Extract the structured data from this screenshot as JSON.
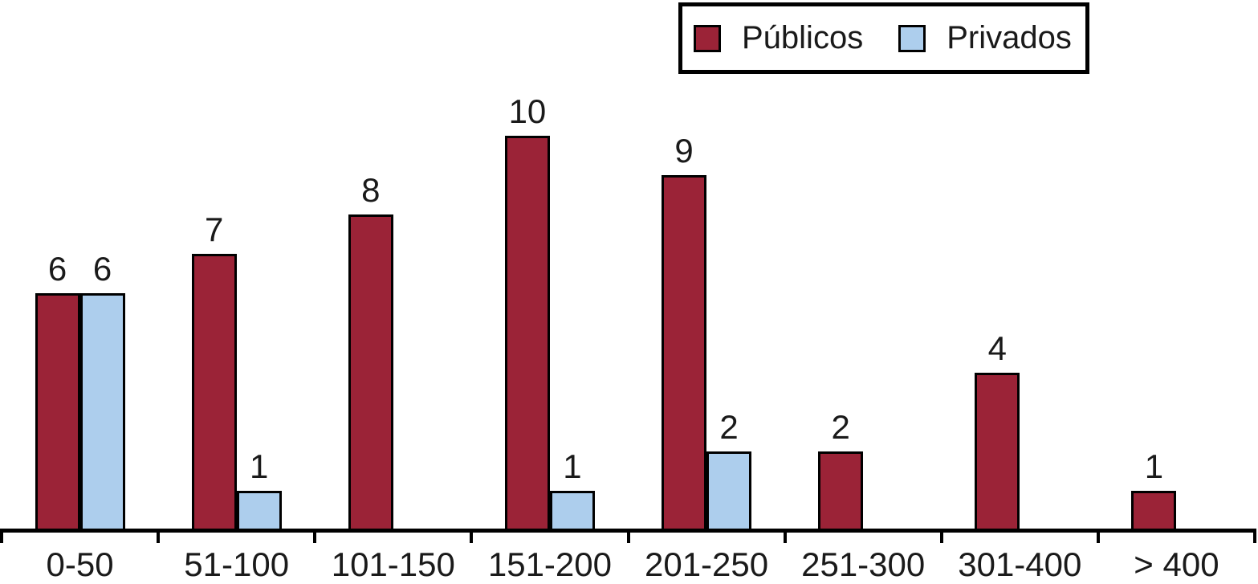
{
  "chart_data": {
    "type": "bar",
    "categories": [
      "0-50",
      "51-100",
      "101-150",
      "151-200",
      "201-250",
      "251-300",
      "301-400",
      "> 400"
    ],
    "series": [
      {
        "name": "Públicos",
        "color": "#9b2337",
        "values": [
          6,
          7,
          8,
          10,
          9,
          2,
          4,
          1
        ]
      },
      {
        "name": "Privados",
        "color": "#adceed",
        "values": [
          6,
          1,
          0,
          1,
          2,
          0,
          0,
          0
        ]
      }
    ],
    "title": "",
    "xlabel": "",
    "ylabel": "",
    "ylim": [
      0,
      10
    ],
    "grid": false,
    "legend_position": "top-right",
    "bar_value_labels": true,
    "hide_zero_bars": true
  },
  "colors": {
    "axis": "#000000",
    "text": "#1a1a1a",
    "background": "#ffffff"
  }
}
